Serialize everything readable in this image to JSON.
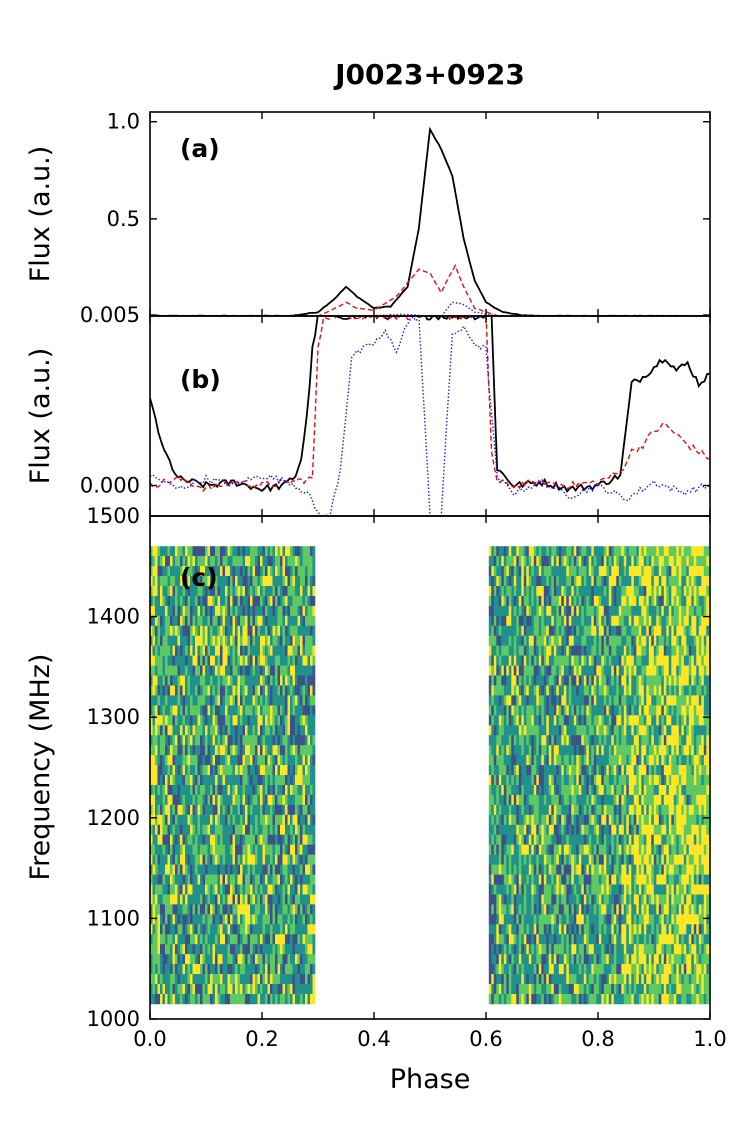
{
  "chart_data": {
    "title": "J0023+0923",
    "xlabel": "Phase",
    "xlim": [
      0.0,
      1.0
    ],
    "x_ticks": [
      "0.0",
      "0.2",
      "0.4",
      "0.6",
      "0.8",
      "1.0"
    ],
    "panels": [
      {
        "id": "a",
        "tag": "(a)",
        "type": "line",
        "ylabel": "Flux (a.u.)",
        "ylim": [
          0.0,
          1.05
        ],
        "y_ticks": [
          {
            "value": 1.0,
            "label": "1.0"
          },
          {
            "value": 0.5,
            "label": "0.5"
          },
          {
            "value": 0.005,
            "label": "0.005"
          }
        ],
        "series": [
          {
            "style": "solid",
            "color": "#000000",
            "x": [
              0.0,
              0.25,
              0.3,
              0.33,
              0.35,
              0.37,
              0.4,
              0.43,
              0.46,
              0.48,
              0.5,
              0.52,
              0.54,
              0.56,
              0.58,
              0.6,
              0.63,
              0.66,
              0.7,
              1.0
            ],
            "y": [
              0.0,
              0.0,
              0.02,
              0.09,
              0.15,
              0.1,
              0.04,
              0.05,
              0.15,
              0.45,
              0.96,
              0.86,
              0.72,
              0.4,
              0.18,
              0.07,
              0.02,
              0.005,
              0.0,
              0.0
            ]
          },
          {
            "style": "dashed",
            "color": "#dd1111",
            "x": [
              0.0,
              0.3,
              0.33,
              0.35,
              0.37,
              0.4,
              0.44,
              0.48,
              0.5,
              0.52,
              0.53,
              0.545,
              0.56,
              0.58,
              0.62,
              1.0
            ],
            "y": [
              0.0,
              0.0,
              0.04,
              0.07,
              0.04,
              0.03,
              0.1,
              0.24,
              0.22,
              0.12,
              0.18,
              0.26,
              0.15,
              0.04,
              0.0,
              0.0
            ]
          },
          {
            "style": "dotted",
            "color": "#2222dd",
            "x": [
              0.0,
              0.4,
              0.45,
              0.49,
              0.52,
              0.54,
              0.56,
              0.58,
              0.62,
              1.0
            ],
            "y": [
              0.0,
              0.0,
              0.01,
              0.0,
              0.0,
              0.07,
              0.06,
              0.02,
              0.0,
              0.0
            ]
          }
        ]
      },
      {
        "id": "b",
        "tag": "(b)",
        "type": "line",
        "ylabel": "Flux (a.u.)",
        "ylim": [
          -0.0009,
          0.005
        ],
        "y_ticks": [
          {
            "value": 0.0,
            "label": "0.000"
          }
        ],
        "series": [
          {
            "style": "solid",
            "color": "#000000",
            "x": [
              0.0,
              0.01,
              0.02,
              0.05,
              0.1,
              0.15,
              0.2,
              0.24,
              0.26,
              0.27,
              0.28,
              0.29,
              0.3,
              0.61,
              0.62,
              0.65,
              0.7,
              0.75,
              0.8,
              0.84,
              0.86,
              0.88,
              0.9,
              0.92,
              0.94,
              0.96,
              0.98,
              1.0
            ],
            "y": [
              0.0025,
              0.002,
              0.0012,
              0.0002,
              0.0,
              0.0001,
              -0.0001,
              0.0,
              0.0003,
              0.0008,
              0.002,
              0.004,
              0.005,
              0.005,
              0.0005,
              0.0,
              0.0001,
              -0.0001,
              0.0,
              0.0003,
              0.003,
              0.0032,
              0.0035,
              0.0038,
              0.0034,
              0.0036,
              0.003,
              0.0033
            ]
          },
          {
            "style": "dashed",
            "color": "#dd1111",
            "x": [
              0.0,
              0.05,
              0.1,
              0.15,
              0.2,
              0.25,
              0.29,
              0.3,
              0.31,
              0.6,
              0.61,
              0.62,
              0.65,
              0.7,
              0.75,
              0.8,
              0.84,
              0.86,
              0.88,
              0.9,
              0.92,
              0.94,
              0.96,
              0.98,
              1.0
            ],
            "y": [
              0.0,
              0.0002,
              -0.0001,
              0.0001,
              0.0,
              0.0001,
              0.0002,
              0.004,
              0.005,
              0.005,
              0.001,
              0.0001,
              0.0,
              0.0001,
              0.0,
              0.0001,
              0.0004,
              0.001,
              0.0012,
              0.0016,
              0.0018,
              0.0015,
              0.0012,
              0.001,
              0.0008
            ]
          },
          {
            "style": "dotted",
            "color": "#2222dd",
            "x": [
              0.0,
              0.05,
              0.1,
              0.15,
              0.2,
              0.25,
              0.28,
              0.3,
              0.32,
              0.34,
              0.36,
              0.38,
              0.4,
              0.42,
              0.44,
              0.46,
              0.48,
              0.5,
              0.52,
              0.54,
              0.56,
              0.58,
              0.6,
              0.62,
              0.65,
              0.7,
              0.75,
              0.8,
              0.85,
              0.9,
              0.95,
              1.0
            ],
            "y": [
              0.0003,
              -0.0001,
              0.0002,
              0.0,
              0.0003,
              0.0001,
              -0.0002,
              -0.0008,
              -0.001,
              0.0005,
              0.0038,
              0.004,
              0.0042,
              0.0045,
              0.004,
              0.0048,
              0.005,
              -0.0009,
              -0.0009,
              0.0045,
              0.0046,
              0.0042,
              0.004,
              0.0002,
              -0.0002,
              0.0001,
              -0.0003,
              0.0,
              -0.0004,
              0.0001,
              -0.0002,
              0.0
            ]
          }
        ]
      },
      {
        "id": "c",
        "tag": "(c)",
        "type": "heatmap",
        "ylabel": "Frequency (MHz)",
        "ylim": [
          1000,
          1500
        ],
        "y_ticks": [
          {
            "value": 1500,
            "label": "1500"
          },
          {
            "value": 1400,
            "label": "1400"
          },
          {
            "value": 1300,
            "label": "1300"
          },
          {
            "value": 1200,
            "label": "1200"
          },
          {
            "value": 1100,
            "label": "1100"
          },
          {
            "value": 1000,
            "label": "1000"
          }
        ],
        "freq_range": [
          1015,
          1470
        ],
        "phase_blocks": [
          [
            0.0,
            0.295
          ],
          [
            0.605,
            1.0
          ]
        ],
        "colormap": [
          "#3b528b",
          "#21918c",
          "#5ec962",
          "#fde725"
        ],
        "bright_region": [
          0.84,
          1.0
        ]
      }
    ]
  }
}
